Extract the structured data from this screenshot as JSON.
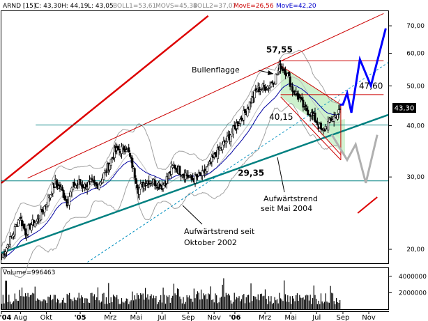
{
  "header": {
    "symbol": "ARND [15]",
    "close": "C: 43,30",
    "high": "H: 44,19",
    "low": "L: 43,05",
    "boll1": "BOLL1=53,61",
    "movs": "MOVS=45,34",
    "boll2": "BOLL2=37,07",
    "move_red": "MovE=26,56",
    "move_blue": "MovE=42,20"
  },
  "volume_label": "Volume=996463",
  "price_tag": "43,30",
  "colors": {
    "background": "#ffffff",
    "candle": "#000000",
    "bollinger": "#a0a0a0",
    "move_blue": "#0000a0",
    "trend_green": "#008080",
    "channel_red": "#cc0000",
    "flag_fill": "#c8f0c8",
    "projection_blue": "#0000ff",
    "projection_gray": "#b0b0b0",
    "tag_bg": "#000000"
  },
  "chart_data": {
    "type": "candlestick",
    "y_scale": "log",
    "ylim": [
      18.5,
      76
    ],
    "price_ticks": [
      "20,00",
      "30,00",
      "40,00",
      "50,00",
      "60,00",
      "70,00"
    ],
    "price_tick_values": [
      20,
      30,
      40,
      50,
      60,
      70
    ],
    "volume_ticks": [
      "4000000",
      "2000000"
    ],
    "volume_tick_values": [
      4000000,
      2000000
    ],
    "volume_max": 5000000,
    "x_labels": [
      "'04",
      "Aug",
      "Okt",
      "'05",
      "Mrz",
      "Mai",
      "Jul",
      "Sep",
      "Nov",
      "'06",
      "Mrz",
      "Mai",
      "Jul",
      "Sep",
      "Nov"
    ],
    "x_label_dates": [
      "2004-07-01",
      "2004-08-15",
      "2004-10-15",
      "2005-01-03",
      "2005-03-15",
      "2005-05-15",
      "2005-07-15",
      "2005-09-15",
      "2005-11-15",
      "2006-01-03",
      "2006-03-15",
      "2006-05-15",
      "2006-07-15",
      "2006-09-15",
      "2006-11-15"
    ],
    "x_range": [
      "2004-07-01",
      "2006-12-31"
    ],
    "closes_biweekly": [
      {
        "date": "2004-07-02",
        "close": 19.2
      },
      {
        "date": "2004-07-16",
        "close": 20.5
      },
      {
        "date": "2004-07-30",
        "close": 22.0
      },
      {
        "date": "2004-08-13",
        "close": 24.0
      },
      {
        "date": "2004-08-27",
        "close": 22.0
      },
      {
        "date": "2004-09-10",
        "close": 23.0
      },
      {
        "date": "2004-09-24",
        "close": 23.5
      },
      {
        "date": "2004-10-08",
        "close": 25.0
      },
      {
        "date": "2004-10-22",
        "close": 27.0
      },
      {
        "date": "2004-11-05",
        "close": 29.0
      },
      {
        "date": "2004-11-19",
        "close": 28.0
      },
      {
        "date": "2004-12-03",
        "close": 26.0
      },
      {
        "date": "2004-12-17",
        "close": 28.5
      },
      {
        "date": "2004-12-31",
        "close": 29.0
      },
      {
        "date": "2005-01-14",
        "close": 28.5
      },
      {
        "date": "2005-01-28",
        "close": 29.0
      },
      {
        "date": "2005-02-11",
        "close": 28.5
      },
      {
        "date": "2005-02-25",
        "close": 30.0
      },
      {
        "date": "2005-03-11",
        "close": 32.0
      },
      {
        "date": "2005-03-25",
        "close": 34.5
      },
      {
        "date": "2005-04-08",
        "close": 35.0
      },
      {
        "date": "2005-04-22",
        "close": 35.5
      },
      {
        "date": "2005-05-06",
        "close": 32.0
      },
      {
        "date": "2005-05-20",
        "close": 28.0
      },
      {
        "date": "2005-06-03",
        "close": 29.0
      },
      {
        "date": "2005-06-17",
        "close": 29.5
      },
      {
        "date": "2005-07-01",
        "close": 29.0
      },
      {
        "date": "2005-07-15",
        "close": 28.5
      },
      {
        "date": "2005-07-29",
        "close": 30.0
      },
      {
        "date": "2005-08-12",
        "close": 32.0
      },
      {
        "date": "2005-08-26",
        "close": 31.0
      },
      {
        "date": "2005-09-09",
        "close": 30.5
      },
      {
        "date": "2005-09-23",
        "close": 29.5
      },
      {
        "date": "2005-10-07",
        "close": 30.0
      },
      {
        "date": "2005-10-21",
        "close": 30.5
      },
      {
        "date": "2005-11-04",
        "close": 32.0
      },
      {
        "date": "2005-11-18",
        "close": 34.0
      },
      {
        "date": "2005-12-02",
        "close": 35.5
      },
      {
        "date": "2005-12-16",
        "close": 37.0
      },
      {
        "date": "2005-12-30",
        "close": 39.0
      },
      {
        "date": "2006-01-13",
        "close": 41.0
      },
      {
        "date": "2006-01-27",
        "close": 43.0
      },
      {
        "date": "2006-02-10",
        "close": 46.0
      },
      {
        "date": "2006-02-24",
        "close": 49.0
      },
      {
        "date": "2006-03-10",
        "close": 49.5
      },
      {
        "date": "2006-03-24",
        "close": 50.0
      },
      {
        "date": "2006-04-07",
        "close": 52.0
      },
      {
        "date": "2006-04-21",
        "close": 56.0
      },
      {
        "date": "2006-05-05",
        "close": 54.0
      },
      {
        "date": "2006-05-19",
        "close": 49.0
      },
      {
        "date": "2006-06-02",
        "close": 47.0
      },
      {
        "date": "2006-06-16",
        "close": 44.0
      },
      {
        "date": "2006-06-30",
        "close": 43.0
      },
      {
        "date": "2006-07-14",
        "close": 41.0
      },
      {
        "date": "2006-07-28",
        "close": 38.5
      },
      {
        "date": "2006-08-11",
        "close": 40.5
      },
      {
        "date": "2006-08-25",
        "close": 42.0
      },
      {
        "date": "2006-09-08",
        "close": 43.3
      }
    ],
    "horizontal_levels": [
      {
        "label": "57,55",
        "value": 57.55
      },
      {
        "label": "47,60",
        "value": 47.6
      },
      {
        "label": "40,15",
        "value": 40.15
      },
      {
        "label": "29,35",
        "value": 29.35
      }
    ],
    "annotations": [
      {
        "text": "Bullenflagge"
      },
      {
        "text": "Aufwärtstrend seit"
      },
      {
        "text": "Oktober 2002"
      },
      {
        "text": "Aufwärtstrend"
      },
      {
        "text": "seit Mai 2004"
      }
    ],
    "projection_blue": [
      {
        "date": "2006-09-08",
        "value": 45.0
      },
      {
        "date": "2006-09-15",
        "value": 45.0
      },
      {
        "date": "2006-09-25",
        "value": 48.0
      },
      {
        "date": "2006-10-05",
        "value": 43.0
      },
      {
        "date": "2006-10-25",
        "value": 58.0
      },
      {
        "date": "2006-11-20",
        "value": 50.0
      },
      {
        "date": "2006-12-25",
        "value": 69.0
      }
    ],
    "projection_gray": [
      {
        "date": "2006-08-20",
        "value": 38.0
      },
      {
        "date": "2006-09-25",
        "value": 33.0
      },
      {
        "date": "2006-10-15",
        "value": 36.0
      },
      {
        "date": "2006-11-08",
        "value": 29.0
      },
      {
        "date": "2006-12-05",
        "value": 38.0
      }
    ],
    "grid": false,
    "legend": "none"
  }
}
